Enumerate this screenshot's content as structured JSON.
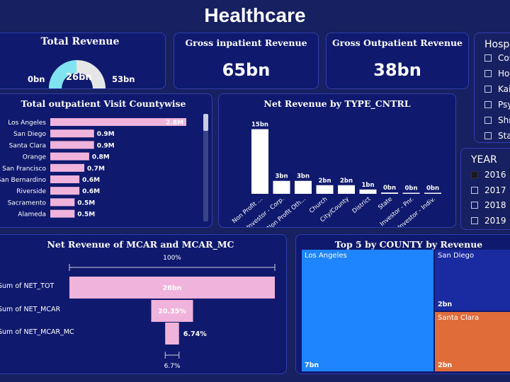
{
  "title": "Healthcare",
  "total_revenue": {
    "title": "Total Revenue",
    "value": "26bn",
    "min": "0bn",
    "max": "53bn",
    "fraction": 0.49
  },
  "gross_inpatient": {
    "title": "Gross inpatient Revenue",
    "value": "65bn"
  },
  "gross_outpatient": {
    "title": "Gross Outpatient Revenue",
    "value": "38bn"
  },
  "hosp_slicer": {
    "title": "Hosp",
    "items": [
      "Com",
      "Hos",
      "Kais",
      "Psy",
      "Shri",
      "Stat"
    ]
  },
  "year_slicer": {
    "title": "YEAR",
    "items": [
      {
        "label": "2016",
        "checked": true
      },
      {
        "label": "2017",
        "checked": false
      },
      {
        "label": "2018",
        "checked": false
      },
      {
        "label": "2019",
        "checked": false
      }
    ]
  },
  "outpatient_visits": {
    "title": "Total outpatient Visit Countywise",
    "bar_color": "#f0b4dc",
    "rows": [
      {
        "county": "Los Angeles",
        "value": 2.8,
        "label": "2.8M"
      },
      {
        "county": "San Diego",
        "value": 0.9,
        "label": "0.9M"
      },
      {
        "county": "Santa Clara",
        "value": 0.9,
        "label": "0.9M"
      },
      {
        "county": "Orange",
        "value": 0.8,
        "label": "0.8M"
      },
      {
        "county": "San Francisco",
        "value": 0.7,
        "label": "0.7M"
      },
      {
        "county": "San Bernardino",
        "value": 0.6,
        "label": "0.6M"
      },
      {
        "county": "Riverside",
        "value": 0.6,
        "label": "0.6M"
      },
      {
        "county": "Sacramento",
        "value": 0.5,
        "label": "0.5M"
      },
      {
        "county": "Alameda",
        "value": 0.5,
        "label": "0.5M"
      }
    ]
  },
  "chart_data": {
    "type": "bar",
    "title": "Net Revenue by TYPE_CNTRL",
    "categories": [
      "Non Profit ...",
      "Investor - Corp.",
      "Non Profit Oth...",
      "Church",
      "City/County",
      "District",
      "State",
      "Investor - Pnr.",
      "Investor - Indiv."
    ],
    "values": [
      15,
      3,
      3,
      2,
      2,
      1,
      0.3,
      0.2,
      0.1
    ],
    "data_labels": [
      "15bn",
      "3bn",
      "3bn",
      "2bn",
      "2bn",
      "1bn",
      "0bn",
      "0bn",
      "0bn"
    ],
    "xlabel": "",
    "ylabel": "",
    "ylim": [
      0,
      16
    ]
  },
  "funnel": {
    "title": "Net Revenue of MCAR and MCAR_MC",
    "top_pct": "100%",
    "bottom_pct": "6.7%",
    "rows": [
      {
        "label": "Sum of NET_TOT",
        "fraction": 1.0,
        "text": "26bn"
      },
      {
        "label": "Sum of NET_MCAR",
        "fraction": 0.2035,
        "text": "20.35%"
      },
      {
        "label": "Sum of NET_MCAR_MC",
        "fraction": 0.0674,
        "text": "6.74%"
      }
    ]
  },
  "treemap": {
    "title": "Top 5 by COUNTY by Revenue",
    "tiles": [
      {
        "name": "Los Angeles",
        "value": "7bn",
        "color": "#1f85ff"
      },
      {
        "name": "San Diego",
        "value": "2bn",
        "color": "#1a2aa0"
      },
      {
        "name": "Santa Clara",
        "value": "2bn",
        "color": "#e06c3a"
      }
    ]
  }
}
